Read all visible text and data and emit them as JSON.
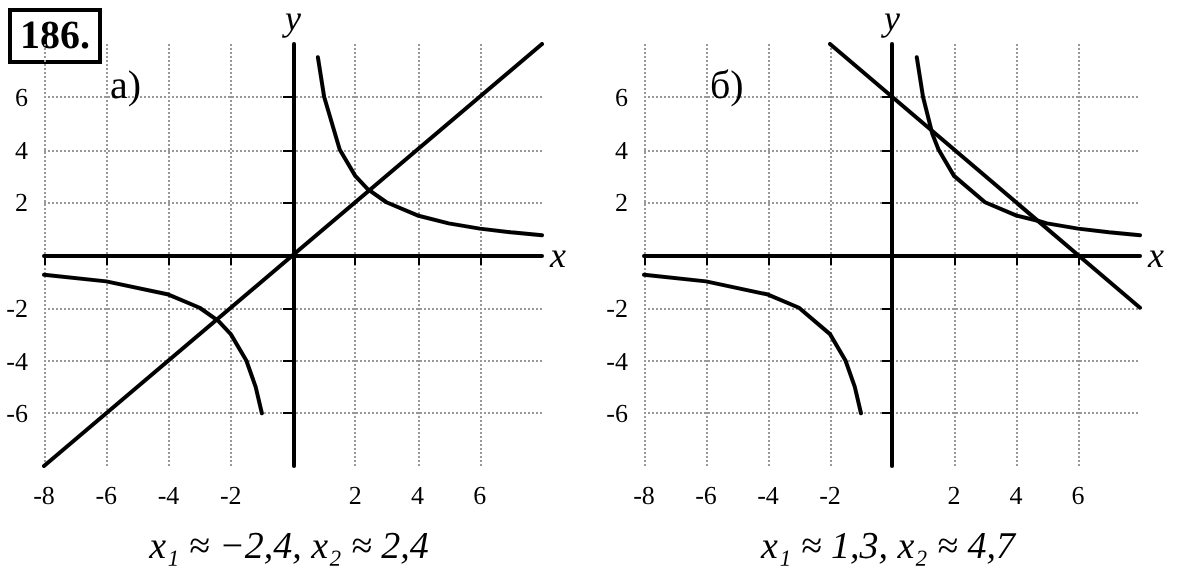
{
  "chart_data": [
    {
      "type": "line",
      "title": "а)",
      "xlabel": "x",
      "ylabel": "y",
      "annotations": [
        "186.",
        "x₁ ≈ −2,4, x₂ ≈ 2,4"
      ],
      "xlim": [
        -8,
        8
      ],
      "ylim": [
        -8,
        8
      ],
      "xticks": [
        -8,
        -6,
        -4,
        -2,
        2,
        4,
        6
      ],
      "yticks": [
        -6,
        -4,
        -2,
        2,
        4,
        6
      ],
      "grid": true,
      "marker": "none",
      "line_style": "solid",
      "series": [
        {
          "color": "#000000",
          "x": [
            0.8,
            1,
            1.5,
            2,
            2.4,
            3,
            4,
            5,
            6,
            7,
            8
          ],
          "values": [
            7.5,
            6,
            4,
            3,
            2.5,
            2,
            1.5,
            1.2,
            1,
            0.86,
            0.75
          ]
        },
        {
          "color": "#000000",
          "x": [
            -8,
            -6,
            -4,
            -3,
            -2.4,
            -2,
            -1.5,
            -1.2,
            -1
          ],
          "values": [
            -0.75,
            -1,
            -1.5,
            -2,
            -2.5,
            -3,
            -4,
            -5,
            -6
          ]
        },
        {
          "color": "#000000",
          "x": [
            -8,
            8
          ],
          "values": [
            -8,
            8
          ]
        }
      ]
    },
    {
      "type": "line",
      "title": "б)",
      "xlabel": "x",
      "ylabel": "y",
      "annotations": [
        "x₁ ≈ 1,3, x₂ ≈ 4,7"
      ],
      "xlim": [
        -8,
        8
      ],
      "ylim": [
        -8,
        8
      ],
      "xticks": [
        -8,
        -6,
        -4,
        -2,
        2,
        4,
        6
      ],
      "yticks": [
        -6,
        -4,
        -2,
        2,
        4,
        6
      ],
      "grid": true,
      "marker": "none",
      "line_style": "solid",
      "series": [
        {
          "color": "#000000",
          "x": [
            0.8,
            1,
            1.3,
            1.5,
            2,
            3,
            4,
            4.7,
            5,
            6,
            7,
            8
          ],
          "values": [
            7.5,
            6,
            4.6,
            4,
            3,
            2,
            1.5,
            1.3,
            1.2,
            1,
            0.86,
            0.75
          ]
        },
        {
          "color": "#000000",
          "x": [
            -8,
            -6,
            -4,
            -3,
            -2,
            -1.5,
            -1.2,
            -1
          ],
          "values": [
            -0.75,
            -1,
            -1.5,
            -2,
            -3,
            -4,
            -5,
            -6
          ]
        },
        {
          "color": "#000000",
          "x": [
            -2,
            8
          ],
          "values": [
            8,
            -2
          ]
        }
      ]
    }
  ]
}
